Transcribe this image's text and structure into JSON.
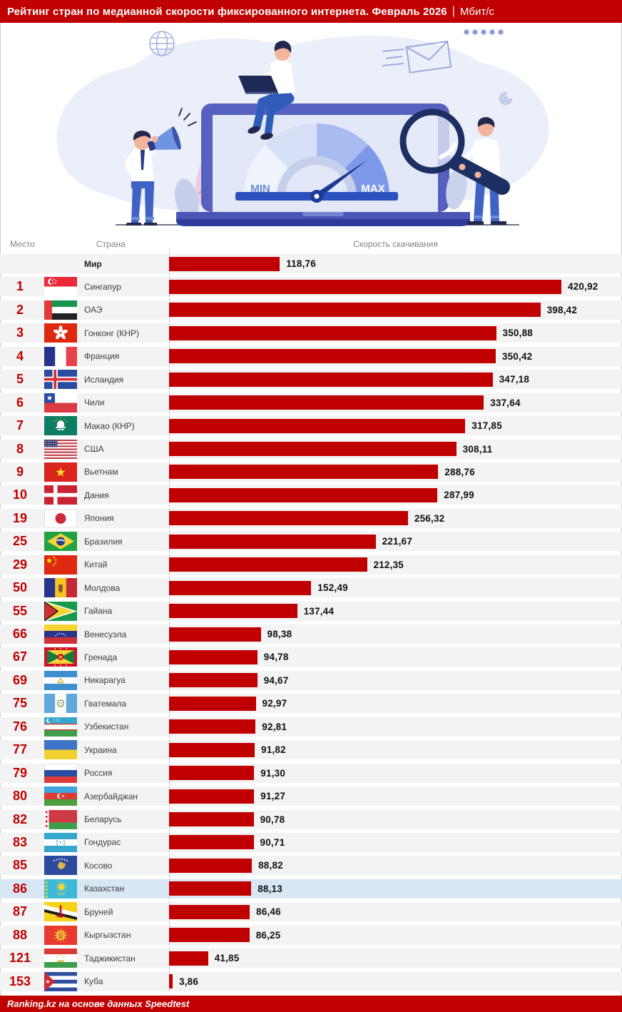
{
  "title": {
    "main": "Рейтинг стран по медианной скорости фиксированного интернета. Февраль 2026",
    "separator": "|",
    "unit": "Мбит/с"
  },
  "columns": {
    "rank": "Место",
    "country": "Страна",
    "speed": "Скорость скачивания"
  },
  "illustration": {
    "min_label": "MIN",
    "max_label": "MAX"
  },
  "footer": {
    "source": "Ranking.kz на основе данных Speedtest"
  },
  "colors": {
    "accent_red": "#C00000",
    "row_bg": "#F3F3F3",
    "highlight_row_bg": "#D9E7F4",
    "header_text_gray": "#818181",
    "illustration_indigo": "#5560BF",
    "illustration_blue": "#2A51BD"
  },
  "chart_data": {
    "type": "bar",
    "orientation": "horizontal",
    "title": "Рейтинг стран по медианной скорости фиксированного интернета. Февраль 2026",
    "unit": "Мбит/с",
    "xlim": [
      0,
      420.92
    ],
    "grid": false,
    "value_labels": "end-of-bar, decimal comma",
    "rows": [
      {
        "rank": "",
        "country": "Мир",
        "flag": "",
        "value": 118.76,
        "label": "118,76",
        "world": true
      },
      {
        "rank": "1",
        "country": "Сингапур",
        "flag": "sg",
        "value": 420.92,
        "label": "420,92"
      },
      {
        "rank": "2",
        "country": "ОАЭ",
        "flag": "ae",
        "value": 398.42,
        "label": "398,42"
      },
      {
        "rank": "3",
        "country": "Гонконг (КНР)",
        "flag": "hk",
        "value": 350.88,
        "label": "350,88"
      },
      {
        "rank": "4",
        "country": "Франция",
        "flag": "fr",
        "value": 350.42,
        "label": "350,42"
      },
      {
        "rank": "5",
        "country": "Исландия",
        "flag": "is",
        "value": 347.18,
        "label": "347,18"
      },
      {
        "rank": "6",
        "country": "Чили",
        "flag": "cl",
        "value": 337.64,
        "label": "337,64"
      },
      {
        "rank": "7",
        "country": "Макао (КНР)",
        "flag": "mo",
        "value": 317.85,
        "label": "317,85"
      },
      {
        "rank": "8",
        "country": "США",
        "flag": "us",
        "value": 308.11,
        "label": "308,11"
      },
      {
        "rank": "9",
        "country": "Вьетнам",
        "flag": "vn",
        "value": 288.76,
        "label": "288,76"
      },
      {
        "rank": "10",
        "country": "Дания",
        "flag": "dk",
        "value": 287.99,
        "label": "287,99"
      },
      {
        "rank": "19",
        "country": "Япония",
        "flag": "jp",
        "value": 256.32,
        "label": "256,32"
      },
      {
        "rank": "25",
        "country": "Бразилия",
        "flag": "br",
        "value": 221.67,
        "label": "221,67"
      },
      {
        "rank": "29",
        "country": "Китай",
        "flag": "cn",
        "value": 212.35,
        "label": "212,35"
      },
      {
        "rank": "50",
        "country": "Молдова",
        "flag": "md",
        "value": 152.49,
        "label": "152,49"
      },
      {
        "rank": "55",
        "country": "Гайана",
        "flag": "gy",
        "value": 137.44,
        "label": "137,44"
      },
      {
        "rank": "66",
        "country": "Венесуэла",
        "flag": "ve",
        "value": 98.38,
        "label": "98,38"
      },
      {
        "rank": "67",
        "country": "Гренада",
        "flag": "gd",
        "value": 94.78,
        "label": "94,78"
      },
      {
        "rank": "69",
        "country": "Никарагуа",
        "flag": "ni",
        "value": 94.67,
        "label": "94,67"
      },
      {
        "rank": "75",
        "country": "Гватемала",
        "flag": "gt",
        "value": 92.97,
        "label": "92,97"
      },
      {
        "rank": "76",
        "country": "Узбекистан",
        "flag": "uz",
        "value": 92.81,
        "label": "92,81"
      },
      {
        "rank": "77",
        "country": "Украина",
        "flag": "ua",
        "value": 91.82,
        "label": "91,82"
      },
      {
        "rank": "79",
        "country": "Россия",
        "flag": "ru",
        "value": 91.3,
        "label": "91,30"
      },
      {
        "rank": "80",
        "country": "Азербайджан",
        "flag": "az",
        "value": 91.27,
        "label": "91,27"
      },
      {
        "rank": "82",
        "country": "Беларусь",
        "flag": "by",
        "value": 90.78,
        "label": "90,78"
      },
      {
        "rank": "83",
        "country": "Гондурас",
        "flag": "hn",
        "value": 90.71,
        "label": "90,71"
      },
      {
        "rank": "85",
        "country": "Косово",
        "flag": "xk",
        "value": 88.82,
        "label": "88,82"
      },
      {
        "rank": "86",
        "country": "Казахстан",
        "flag": "kz",
        "value": 88.13,
        "label": "88,13",
        "highlight": true
      },
      {
        "rank": "87",
        "country": "Бруней",
        "flag": "bn",
        "value": 86.46,
        "label": "86,46"
      },
      {
        "rank": "88",
        "country": "Кыргызстан",
        "flag": "kg",
        "value": 86.25,
        "label": "86,25"
      },
      {
        "rank": "121",
        "country": "Таджикистан",
        "flag": "tj",
        "value": 41.85,
        "label": "41,85"
      },
      {
        "rank": "153",
        "country": "Куба",
        "flag": "cu",
        "value": 3.86,
        "label": "3,86"
      }
    ]
  }
}
